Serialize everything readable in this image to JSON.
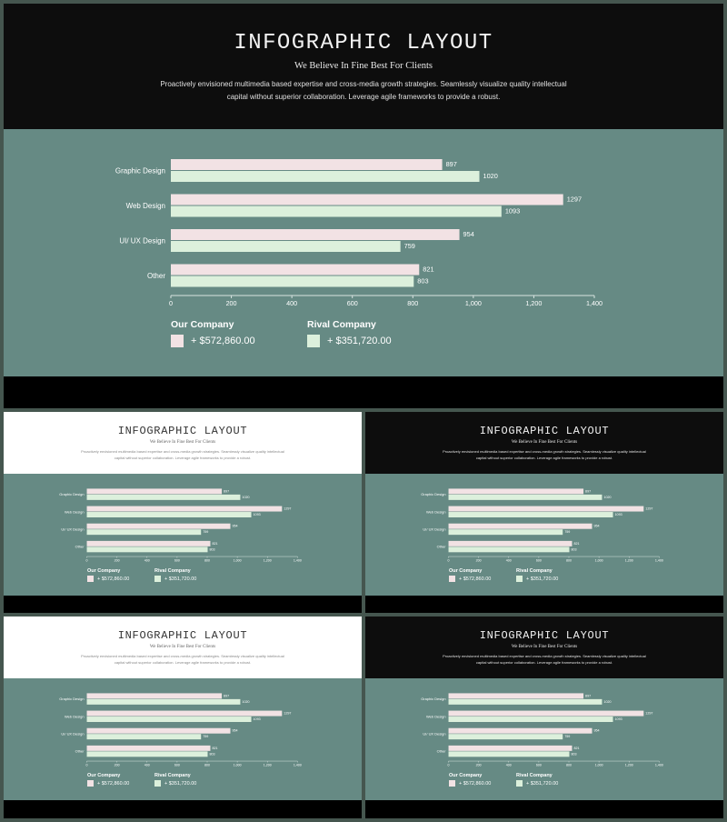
{
  "slide": {
    "title": "INFOGRAPHIC LAYOUT",
    "subtitle": "We Believe In Fine Best For Clients",
    "description_line1": "Proactively envisioned multimedia based expertise and cross-media growth strategies. Seamlessly visualize quality intellectual",
    "description_line2": "capital without superior collaboration. Leverage agile frameworks to provide a robust."
  },
  "legend": {
    "our_company": {
      "name": "Our Company",
      "value": "+ $572,860.00"
    },
    "rival_company": {
      "name": "Rival Company",
      "value": "+ $351,720.00"
    }
  },
  "colors": {
    "teal_background": "#668a84",
    "our_company_bar": "#f2e2e4",
    "rival_company_bar": "#dcf0dc",
    "dark_band": "#0d0d0d",
    "light_band": "#ffffff",
    "frame": "#45564f"
  },
  "chart_data": {
    "type": "bar",
    "orientation": "horizontal",
    "categories": [
      "Graphic Design",
      "Web Design",
      "UI/ UX Design",
      "Other"
    ],
    "series": [
      {
        "name": "Our Company",
        "values": [
          897,
          1297,
          954,
          821
        ]
      },
      {
        "name": "Rival Company",
        "values": [
          1020,
          1093,
          759,
          803
        ]
      }
    ],
    "data_labels": true,
    "xlim": [
      0,
      1400
    ],
    "xticks": [
      0,
      200,
      400,
      600,
      800,
      1000,
      1200,
      1400
    ],
    "xtick_labels": [
      "0",
      "200",
      "400",
      "600",
      "800",
      "1,000",
      "1,200",
      "1,400"
    ],
    "grid": false,
    "legend_position": "bottom"
  },
  "slides": [
    {
      "name": "main-slide",
      "theme": "dark"
    },
    {
      "name": "thumbnail-light-1",
      "theme": "light"
    },
    {
      "name": "thumbnail-dark-1",
      "theme": "dark"
    },
    {
      "name": "thumbnail-light-2",
      "theme": "light"
    },
    {
      "name": "thumbnail-dark-2",
      "theme": "dark"
    }
  ]
}
